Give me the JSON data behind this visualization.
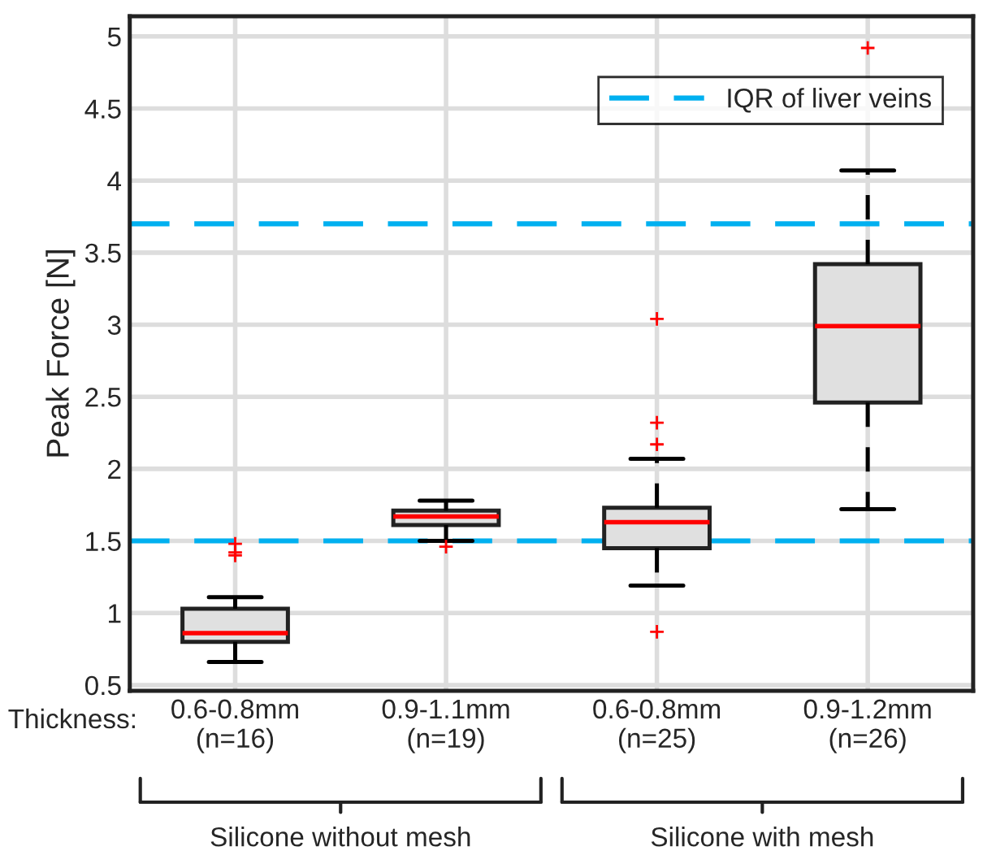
{
  "chart_data": {
    "type": "box",
    "ylabel": "Peak Force [N]",
    "categories": [
      "0.6-0.8mm\n(n=16)",
      "0.9-1.1mm\n(n=19)",
      "0.6-0.8mm\n(n=25)",
      "0.9-1.2mm\n(n=26)"
    ],
    "series": [
      {
        "color": "#e0e0e0",
        "boxes": [
          {
            "low": 0.66,
            "q1": 0.8,
            "median": 0.86,
            "q3": 1.03,
            "high": 1.11,
            "outliers": [
              1.4,
              1.42,
              1.48
            ]
          },
          {
            "low": 1.5,
            "q1": 1.61,
            "median": 1.67,
            "q3": 1.71,
            "high": 1.78,
            "outliers": [
              1.46
            ]
          },
          {
            "low": 1.19,
            "q1": 1.45,
            "median": 1.63,
            "q3": 1.73,
            "high": 2.07,
            "outliers": [
              0.87,
              2.17,
              2.32,
              3.04
            ]
          },
          {
            "low": 1.72,
            "q1": 2.46,
            "median": 2.99,
            "q3": 3.42,
            "high": 4.07,
            "outliers": [
              4.92
            ]
          }
        ]
      }
    ],
    "ylim": [
      0.46,
      5.14
    ],
    "yticks": [
      0.5,
      1,
      1.5,
      2,
      2.5,
      3,
      3.5,
      4,
      4.5,
      5
    ],
    "ref_lines": [
      {
        "axis": "y",
        "value": 3.7,
        "label": "IQR of liver veins",
        "color": "#00b0f0",
        "line_style": "dashed"
      },
      {
        "axis": "y",
        "value": 1.5,
        "color": "#00b0f0",
        "line_style": "dashed"
      }
    ],
    "annotations": [
      "Thickness:",
      "Silicone without mesh",
      "Silicone with mesh"
    ],
    "grid": true,
    "legend": "top right"
  }
}
